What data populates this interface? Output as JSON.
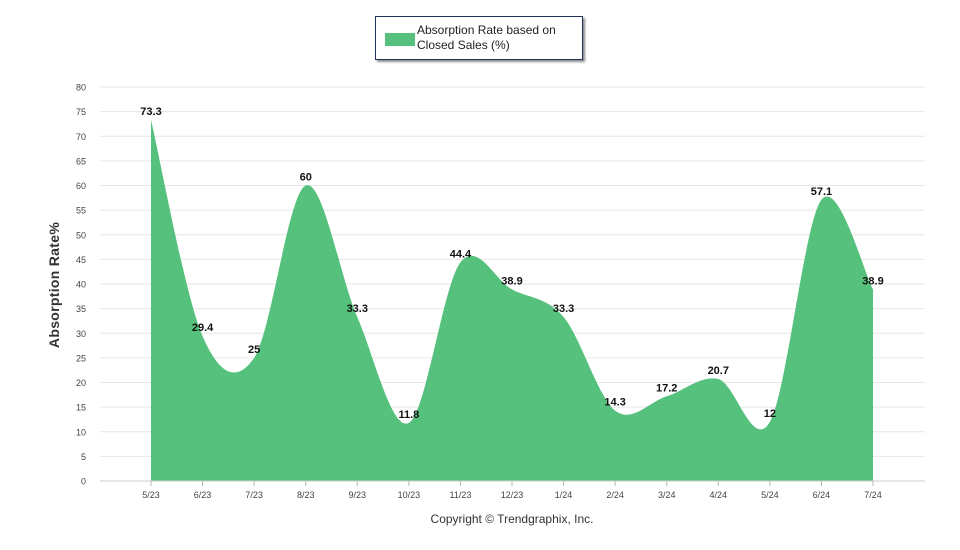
{
  "chart_data": {
    "type": "area",
    "title": "",
    "categories": [
      "5/23",
      "6/23",
      "7/23",
      "8/23",
      "9/23",
      "10/23",
      "11/23",
      "12/23",
      "1/24",
      "2/24",
      "3/24",
      "4/24",
      "5/24",
      "6/24",
      "7/24"
    ],
    "series": [
      {
        "name": "Absorption Rate based on Closed Sales (%)",
        "values": [
          73.3,
          29.4,
          25,
          60,
          33.3,
          11.8,
          44.4,
          38.9,
          33.3,
          14.3,
          17.2,
          20.7,
          12,
          57.1,
          38.9
        ],
        "labels": [
          "73.3",
          "29.4",
          "25",
          "60",
          "33.3",
          "11.8",
          "44.4",
          "38.9",
          "33.3",
          "14.3",
          "17.2",
          "20.7",
          "12",
          "57.1",
          "38.9"
        ],
        "color": "#55c17c"
      }
    ],
    "xlabel": "",
    "ylabel": "Absorption Rate%",
    "ylim": [
      0,
      80
    ],
    "yticks": [
      "0",
      "5",
      "10",
      "15",
      "20",
      "25",
      "30",
      "35",
      "40",
      "45",
      "50",
      "55",
      "60",
      "65",
      "70",
      "75",
      "80"
    ],
    "grid": true,
    "legend_position": "top-center"
  },
  "footer": {
    "copyright": "Copyright © Trendgraphix, Inc."
  },
  "colors": {
    "area": "#55c17c",
    "grid": "#e6e6e6",
    "text": "#333333"
  }
}
